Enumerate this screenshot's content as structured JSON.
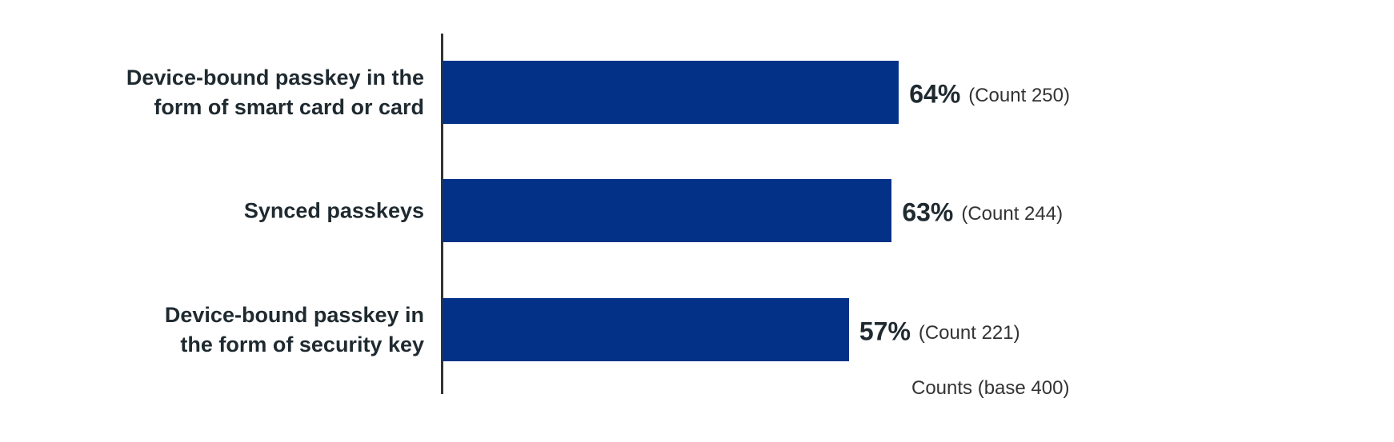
{
  "chart_data": {
    "type": "bar",
    "orientation": "horizontal",
    "categories": [
      "Device-bound passkey in the\nform of smart card or card",
      "Synced passkeys",
      "Device-bound passkey in\nthe form of security key"
    ],
    "values": [
      64,
      63,
      57
    ],
    "value_labels": [
      "64%",
      "63%",
      "57%"
    ],
    "count_labels": [
      "(Count 250)",
      "(Count 244)",
      "(Count 221)"
    ],
    "note": "Counts (base 400)",
    "color": "#023187"
  }
}
